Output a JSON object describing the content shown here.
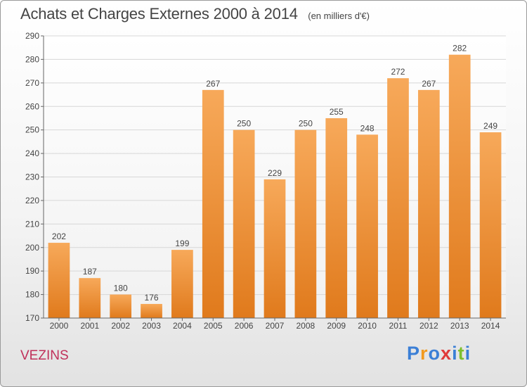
{
  "title": "Achats et Charges Externes 2000 à 2014",
  "unit": "(en milliers d'€)",
  "commune": "VEZINS",
  "logo": {
    "letters": [
      "P",
      "r",
      "o",
      "x",
      "i",
      "t",
      "i"
    ],
    "colors": [
      "#3b7fd6",
      "#f29a1e",
      "#3b7fd6",
      "#e03a3a",
      "#3b7fd6",
      "#7dbf2e",
      "#3b7fd6"
    ]
  },
  "colors": {
    "bar_top": "#f7a95a",
    "bar_bottom": "#e07a1c",
    "grid": "#d7d7d7",
    "axis": "#666666",
    "title": "#444444",
    "commune": "#c0305a"
  },
  "chart_data": {
    "type": "bar",
    "categories": [
      "2000",
      "2001",
      "2002",
      "2003",
      "2004",
      "2005",
      "2006",
      "2007",
      "2008",
      "2009",
      "2010",
      "2011",
      "2012",
      "2013",
      "2014"
    ],
    "values": [
      202,
      187,
      180,
      176,
      199,
      267,
      250,
      229,
      250,
      255,
      248,
      272,
      267,
      282,
      249
    ],
    "ylim": [
      170,
      290
    ],
    "yticks": [
      170,
      180,
      190,
      200,
      210,
      220,
      230,
      240,
      250,
      260,
      270,
      280,
      290
    ],
    "grid": true
  }
}
